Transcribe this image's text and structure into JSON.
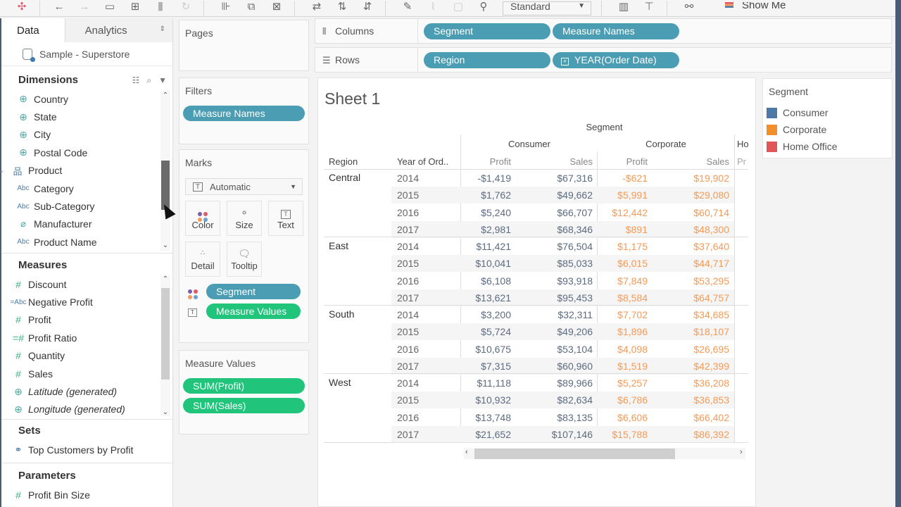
{
  "toolbar": {
    "icons": [
      "tableau-logo-icon",
      "undo-icon",
      "redo-icon",
      "save-icon",
      "new-data-source-icon",
      "pause-auto-updates-icon",
      "refresh-icon",
      "new-worksheet-icon",
      "duplicate-sheet-icon",
      "clear-sheet-icon",
      "swap-rows-columns-icon",
      "sort-ascending-icon",
      "sort-descending-icon",
      "highlight-icon",
      "group-members-icon",
      "show-mark-labels-icon",
      "fix-axes-icon"
    ],
    "fit_select": "Standard",
    "show_me_label": "Show Me"
  },
  "left_pane": {
    "tabs": [
      {
        "label": "Data",
        "active": true
      },
      {
        "label": "Analytics",
        "active": false
      }
    ],
    "data_source": "Sample - Superstore",
    "dimensions": {
      "title": "Dimensions",
      "items": [
        {
          "label": "Country",
          "icon": "globe"
        },
        {
          "label": "State",
          "icon": "globe"
        },
        {
          "label": "City",
          "icon": "globe"
        },
        {
          "label": "Postal Code",
          "icon": "globe"
        },
        {
          "label": "Product",
          "icon": "hierarchy",
          "expanded": true
        },
        {
          "label": "Category",
          "icon": "abc"
        },
        {
          "label": "Sub-Category",
          "icon": "abc"
        },
        {
          "label": "Manufacturer",
          "icon": "paperclip"
        },
        {
          "label": "Product Name",
          "icon": "abc"
        }
      ]
    },
    "measures": {
      "title": "Measures",
      "items": [
        {
          "label": "Discount",
          "icon": "hash"
        },
        {
          "label": "Negative Profit",
          "icon": "calc-abc"
        },
        {
          "label": "Profit",
          "icon": "hash"
        },
        {
          "label": "Profit Ratio",
          "icon": "calc-hash"
        },
        {
          "label": "Quantity",
          "icon": "hash"
        },
        {
          "label": "Sales",
          "icon": "hash"
        },
        {
          "label": "Latitude (generated)",
          "icon": "globe",
          "italic": true
        },
        {
          "label": "Longitude (generated)",
          "icon": "globe",
          "italic": true
        }
      ]
    },
    "sets": {
      "title": "Sets",
      "items": [
        {
          "label": "Top Customers by Profit",
          "icon": "set"
        }
      ]
    },
    "parameters": {
      "title": "Parameters",
      "items": [
        {
          "label": "Profit Bin Size",
          "icon": "hash"
        }
      ]
    }
  },
  "cards": {
    "pages": {
      "title": "Pages"
    },
    "filters": {
      "title": "Filters",
      "pills": [
        "Measure Names"
      ]
    },
    "marks": {
      "title": "Marks",
      "type": "Automatic",
      "buttons": [
        "Color",
        "Size",
        "Text",
        "Detail",
        "Tooltip"
      ],
      "encodings": [
        {
          "type": "color",
          "label": "Segment"
        },
        {
          "type": "text",
          "label": "Measure Values"
        }
      ]
    },
    "measure_values": {
      "title": "Measure Values",
      "pills": [
        "SUM(Profit)",
        "SUM(Sales)"
      ]
    }
  },
  "shelves": {
    "columns": {
      "label": "Columns",
      "pills": [
        "Segment",
        "Measure Names"
      ]
    },
    "rows": {
      "label": "Rows",
      "pills": [
        "Region",
        "YEAR(Order Date)"
      ]
    }
  },
  "sheet": {
    "title": "Sheet 1",
    "segment_header": "Segment",
    "row_headers": [
      "Region",
      "Year of Ord.."
    ],
    "segments": [
      "Consumer",
      "Corporate",
      "Ho"
    ],
    "measure_headers": [
      "Profit",
      "Sales",
      "Profit",
      "Sales",
      "Pr"
    ]
  },
  "legend": {
    "title": "Segment",
    "items": [
      {
        "label": "Consumer",
        "color": "#4e79a7"
      },
      {
        "label": "Corporate",
        "color": "#f28e2b"
      },
      {
        "label": "Home Office",
        "color": "#e15759"
      }
    ]
  },
  "colors": {
    "pill_blue": "#4a9db2",
    "pill_green": "#20c47a",
    "consumer_text": "#5c6b80",
    "corporate_text": "#f29b5a"
  },
  "chart_data": {
    "type": "table",
    "title": "Sheet 1",
    "columns": [
      "Region",
      "Year of Order Date",
      "Consumer Profit",
      "Consumer Sales",
      "Corporate Profit",
      "Corporate Sales"
    ],
    "rows": [
      [
        "Central",
        "2014",
        "-$1,419",
        "$67,316",
        "-$621",
        "$19,902"
      ],
      [
        "Central",
        "2015",
        "$1,762",
        "$49,662",
        "$5,991",
        "$29,080"
      ],
      [
        "Central",
        "2016",
        "$5,240",
        "$66,707",
        "$12,442",
        "$60,714"
      ],
      [
        "Central",
        "2017",
        "$2,981",
        "$68,346",
        "$891",
        "$48,300"
      ],
      [
        "East",
        "2014",
        "$11,421",
        "$76,504",
        "$1,175",
        "$37,640"
      ],
      [
        "East",
        "2015",
        "$10,041",
        "$85,033",
        "$6,015",
        "$44,717"
      ],
      [
        "East",
        "2016",
        "$6,108",
        "$93,918",
        "$7,849",
        "$53,295"
      ],
      [
        "East",
        "2017",
        "$13,621",
        "$95,453",
        "$8,584",
        "$64,757"
      ],
      [
        "South",
        "2014",
        "$3,200",
        "$32,311",
        "$7,702",
        "$34,685"
      ],
      [
        "South",
        "2015",
        "$5,724",
        "$49,206",
        "$1,896",
        "$18,107"
      ],
      [
        "South",
        "2016",
        "$10,675",
        "$53,104",
        "$4,098",
        "$26,695"
      ],
      [
        "South",
        "2017",
        "$7,315",
        "$60,960",
        "$1,519",
        "$42,399"
      ],
      [
        "West",
        "2014",
        "$11,118",
        "$89,966",
        "$5,257",
        "$36,208"
      ],
      [
        "West",
        "2015",
        "$10,932",
        "$82,634",
        "$6,786",
        "$36,853"
      ],
      [
        "West",
        "2016",
        "$13,748",
        "$83,135",
        "$6,606",
        "$66,402"
      ],
      [
        "West",
        "2017",
        "$21,652",
        "$107,146",
        "$15,788",
        "$86,392"
      ]
    ]
  }
}
